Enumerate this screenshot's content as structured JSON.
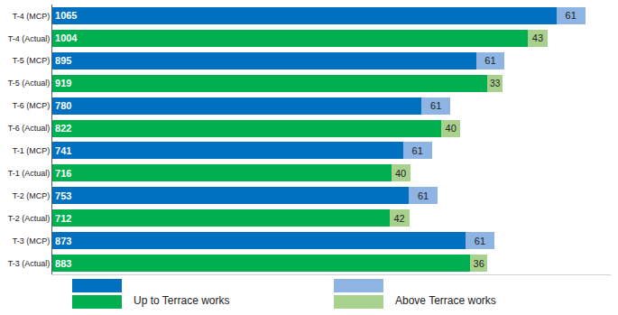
{
  "chart_data": {
    "type": "bar",
    "orientation": "horizontal",
    "stacked": true,
    "data_labels": true,
    "tick_labels": "y",
    "grid": false,
    "categories": [
      "T-4 (MCP)",
      "T-4 (Actual)",
      "T-5 (MCP)",
      "T-5 (Actual)",
      "T-6 (MCP)",
      "T-6 (Actual)",
      "T-1 (MCP)",
      "T-1 (Actual)",
      "T-2 (MCP)",
      "T-2 (Actual)",
      "T-3 (MCP)",
      "T-3 (Actual)"
    ],
    "series": [
      {
        "name": "Up to Terrace works",
        "colors": [
          "#0070C0",
          "#00B050",
          "#0070C0",
          "#00B050",
          "#0070C0",
          "#00B050",
          "#0070C0",
          "#00B050",
          "#0070C0",
          "#00B050",
          "#0070C0",
          "#00B050"
        ],
        "values": [
          1065,
          1004,
          895,
          919,
          780,
          822,
          741,
          716,
          753,
          712,
          873,
          883
        ]
      },
      {
        "name": "Above Terrace works",
        "colors": [
          "#8DB4E2",
          "#A9D18E",
          "#8DB4E2",
          "#A9D18E",
          "#8DB4E2",
          "#A9D18E",
          "#8DB4E2",
          "#A9D18E",
          "#8DB4E2",
          "#A9D18E",
          "#8DB4E2",
          "#A9D18E"
        ],
        "values": [
          61,
          43,
          61,
          33,
          61,
          40,
          61,
          40,
          61,
          42,
          61,
          36
        ]
      }
    ],
    "xlim": [
      0,
      1180
    ],
    "xticks": []
  }
}
